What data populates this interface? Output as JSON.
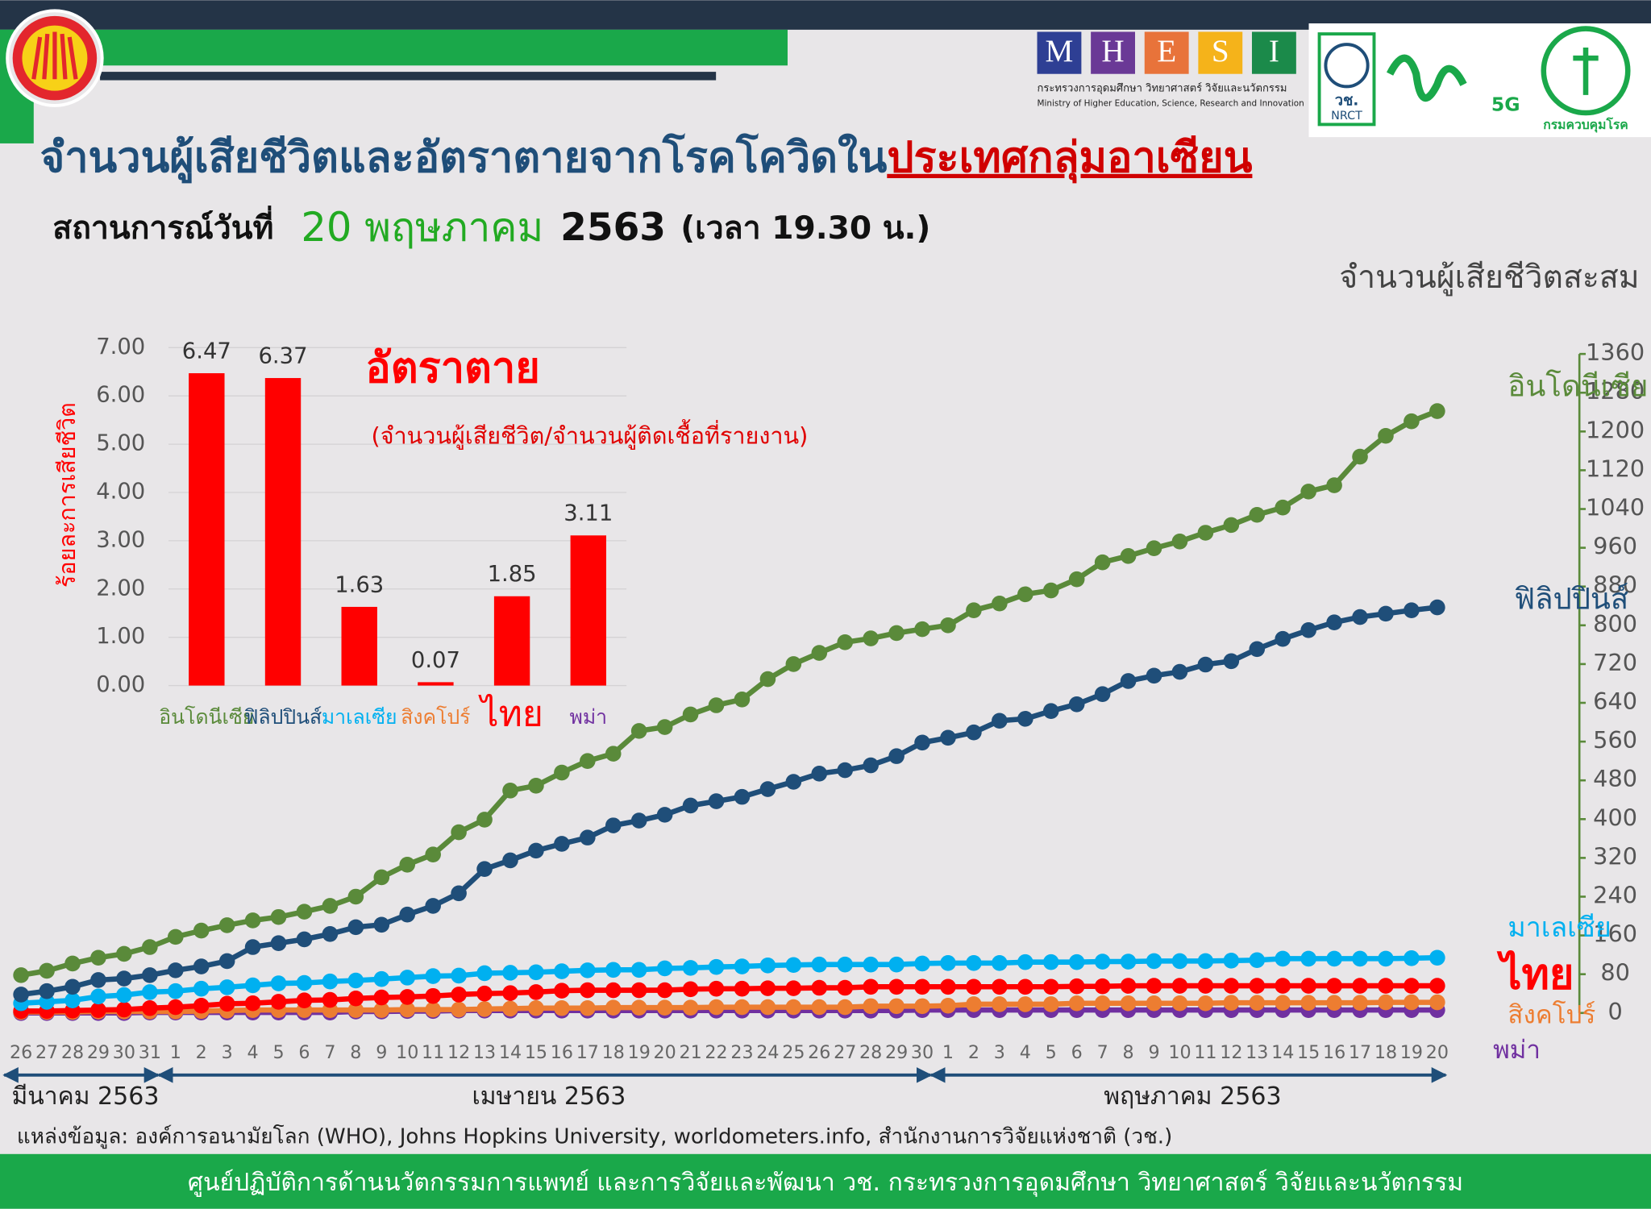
{
  "header": {
    "mhesi_letters": [
      "M",
      "H",
      "E",
      "S",
      "I"
    ],
    "mhesi_th": "กระทรวงการอุดมศึกษา วิทยาศาสตร์ วิจัยและนวัตกรรม",
    "mhesi_en": "Ministry of Higher Education, Science, Research and Innovation",
    "nrct_th": "วช.",
    "nrct_en": "NRCT",
    "fiveg": "5G",
    "ddc": "กรมควบคุมโรค"
  },
  "title": {
    "part1": "จำนวนผู้เสียชีวิตและอัตราตายจากโรคโควิดใน",
    "part2": "ประเทศกลุ่มอาเซียน"
  },
  "subtitle": {
    "label": "สถานการณ์วันที่",
    "date": "20 พฤษภาคม",
    "year": "2563",
    "time": "(เวลา 19.30 น.)"
  },
  "chart_data": [
    {
      "type": "bar",
      "title": "อัตราตาย",
      "subtitle": "(จำนวนผู้เสียชีวิต/จำนวนผู้ติดเชื้อที่รายงาน)",
      "y_label": "ร้อยละการเสียชีวิต",
      "categories": [
        "อินโดนีเซีย",
        "ฟิลิปปินส์",
        "มาเลเซีย",
        "สิงคโปร์",
        "ไทย",
        "พม่า"
      ],
      "category_colors": [
        "#5a8a3a",
        "#1f4e79",
        "#00b0f0",
        "#ed7d31",
        "#ff0000",
        "#7030a0"
      ],
      "values": [
        6.47,
        6.37,
        1.63,
        0.07,
        1.85,
        3.11
      ],
      "color": "#ff0000",
      "ylim": [
        0,
        7
      ],
      "yticks": [
        {
          "value": 0,
          "label": "0.00"
        },
        {
          "value": 1,
          "label": "1.00"
        },
        {
          "value": 2,
          "label": "2.00"
        },
        {
          "value": 3,
          "label": "3.00"
        },
        {
          "value": 4,
          "label": "4.00"
        },
        {
          "value": 5,
          "label": "5.00"
        },
        {
          "value": 6,
          "label": "6.00"
        },
        {
          "value": 7,
          "label": "7.00"
        }
      ],
      "grid": true
    },
    {
      "type": "line",
      "y_label": "จำนวนผู้เสียชีวิตสะสม",
      "categories": [
        "26",
        "27",
        "28",
        "29",
        "30",
        "31",
        "1",
        "2",
        "3",
        "4",
        "5",
        "6",
        "7",
        "8",
        "9",
        "10",
        "11",
        "12",
        "13",
        "14",
        "15",
        "16",
        "17",
        "18",
        "19",
        "20",
        "21",
        "22",
        "23",
        "24",
        "25",
        "26",
        "27",
        "28",
        "29",
        "30",
        "1",
        "2",
        "3",
        "4",
        "5",
        "6",
        "7",
        "8",
        "9",
        "10",
        "11",
        "12",
        "13",
        "14",
        "15",
        "16",
        "17",
        "18",
        "19",
        "20"
      ],
      "month_labels": [
        "มีนาคม 2563",
        "เมษายน 2563",
        "พฤษภาคม 2563"
      ],
      "ylim": [
        0,
        1360
      ],
      "yticks": [
        0,
        80,
        160,
        240,
        320,
        400,
        480,
        560,
        640,
        720,
        800,
        880,
        960,
        1040,
        1120,
        1200,
        1280,
        1360
      ],
      "series": [
        {
          "name": "อินโดนีเซีย",
          "color": "#5a8a3a",
          "values": [
            78,
            87,
            102,
            114,
            122,
            136,
            157,
            170,
            181,
            191,
            198,
            209,
            221,
            240,
            280,
            306,
            327,
            373,
            399,
            459,
            469,
            496,
            520,
            535,
            582,
            590,
            616,
            635,
            647,
            689,
            720,
            743,
            765,
            773,
            784,
            792,
            800,
            831,
            845,
            864,
            872,
            895,
            930,
            943,
            959,
            973,
            991,
            1007,
            1028,
            1043,
            1076,
            1089,
            1148,
            1191,
            1221,
            1242
          ]
        },
        {
          "name": "ฟิลิปปินส์",
          "color": "#1f4e79",
          "values": [
            38,
            45,
            54,
            68,
            71,
            78,
            88,
            96,
            107,
            136,
            144,
            152,
            163,
            177,
            182,
            203,
            221,
            247,
            297,
            315,
            335,
            349,
            362,
            387,
            397,
            409,
            428,
            437,
            446,
            462,
            477,
            494,
            501,
            511,
            530,
            558,
            568,
            579,
            603,
            607,
            623,
            637,
            658,
            685,
            696,
            704,
            719,
            726,
            751,
            772,
            790,
            806,
            817,
            824,
            831,
            837
          ]
        },
        {
          "name": "มาเลเซีย",
          "color": "#00b0f0",
          "values": [
            20,
            23,
            26,
            34,
            37,
            43,
            45,
            50,
            53,
            57,
            61,
            62,
            65,
            67,
            70,
            73,
            76,
            77,
            82,
            83,
            84,
            86,
            88,
            89,
            89,
            92,
            93,
            95,
            96,
            98,
            99,
            100,
            100,
            100,
            100,
            102,
            103,
            103,
            103,
            105,
            105,
            105,
            106,
            106,
            107,
            107,
            107,
            108,
            109,
            112,
            112,
            112,
            112,
            112,
            113,
            114
          ]
        },
        {
          "name": "ไทย",
          "color": "#ff0000",
          "values": [
            4,
            4,
            5,
            6,
            7,
            10,
            12,
            15,
            19,
            20,
            23,
            26,
            27,
            30,
            32,
            33,
            35,
            38,
            40,
            41,
            43,
            46,
            47,
            47,
            47,
            47,
            49,
            50,
            50,
            51,
            51,
            52,
            52,
            54,
            54,
            54,
            54,
            54,
            54,
            54,
            54,
            55,
            55,
            56,
            56,
            56,
            56,
            56,
            56,
            56,
            56,
            56,
            56,
            56,
            56,
            56
          ]
        },
        {
          "name": "สิงคโปร์",
          "color": "#ed7d31",
          "values": [
            2,
            2,
            2,
            3,
            3,
            3,
            3,
            4,
            5,
            6,
            6,
            6,
            6,
            6,
            6,
            7,
            7,
            7,
            8,
            9,
            10,
            10,
            10,
            11,
            11,
            11,
            11,
            12,
            12,
            12,
            12,
            12,
            12,
            14,
            14,
            14,
            15,
            18,
            18,
            18,
            18,
            20,
            20,
            20,
            20,
            20,
            20,
            21,
            21,
            21,
            21,
            21,
            21,
            22,
            22,
            22
          ]
        },
        {
          "name": "พม่า",
          "color": "#7030a0",
          "values": [
            0,
            0,
            0,
            0,
            0,
            1,
            1,
            1,
            1,
            1,
            1,
            1,
            1,
            3,
            3,
            4,
            4,
            5,
            5,
            5,
            5,
            5,
            5,
            5,
            5,
            5,
            5,
            5,
            5,
            5,
            5,
            5,
            5,
            5,
            5,
            6,
            6,
            6,
            6,
            6,
            6,
            6,
            6,
            6,
            6,
            6,
            6,
            6,
            6,
            6,
            6,
            6,
            6,
            6,
            6,
            6
          ]
        }
      ]
    }
  ],
  "source": "แหล่งข้อมูล: องค์การอนามัยโลก (WHO), Johns Hopkins University, worldometers.info, สำนักงานการวิจัยแห่งชาติ (วช.)",
  "footer": "ศูนย์ปฏิบัติการด้านนวัตกรรมการแพทย์ และการวิจัยและพัฒนา  วช.   กระทรวงการอุดมศึกษา วิทยาศาสตร์ วิจัยและนวัตกรรม"
}
